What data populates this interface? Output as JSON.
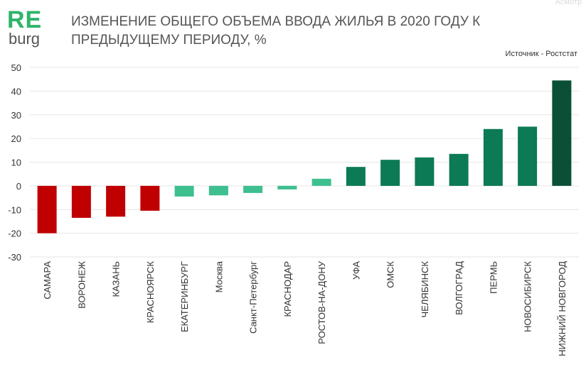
{
  "logo": {
    "re": "RE",
    "burg": "burg"
  },
  "header": {
    "title": "ИЗМЕНЕНИЕ ОБЩЕГО ОБЪЕМА ВВОДА ЖИЛЬЯ В 2020 ГОДУ К ПРЕДЫДУЩЕМУ ПЕРИОДУ, %",
    "source": "Источник - Ростстат",
    "watermark": "Асмотр"
  },
  "colors": {
    "negative": "#c00000",
    "small": "#3dbf8f",
    "positive": "#0b7a55",
    "max": "#0a5036",
    "grid": "#e6e6e6",
    "axis_text": "#333333"
  },
  "chart_data": {
    "type": "bar",
    "title": "ИЗМЕНЕНИЕ ОБЩЕГО ОБЪЕМА ВВОДА ЖИЛЬЯ В 2020 ГОДУ К ПРЕДЫДУЩЕМУ ПЕРИОДУ, %",
    "categories": [
      "САМАРА",
      "ВОРОНЕЖ",
      "КАЗАНЬ",
      "КРАСНОЯРСК",
      "ЕКАТЕРИНБУРГ",
      "Москва",
      "Санкт-Петербург",
      "КРАСНОДАР",
      "РОСТОВ-НА-ДОНУ",
      "УФА",
      "ОМСК",
      "ЧЕЛЯБИНСК",
      "ВОЛГОГРАД",
      "ПЕРМЬ",
      "НОВОСИБИРСК",
      "НИЖНИЙ НОВГОРОД"
    ],
    "values": [
      -20,
      -13.5,
      -13,
      -10.5,
      -4.5,
      -4,
      -3,
      -1.5,
      3,
      8,
      11,
      12,
      13.5,
      24,
      25,
      44.5
    ],
    "color_groups": [
      "negative",
      "negative",
      "negative",
      "negative",
      "small",
      "small",
      "small",
      "small",
      "small",
      "positive",
      "positive",
      "positive",
      "positive",
      "positive",
      "positive",
      "max"
    ],
    "ylim": [
      -30,
      50
    ],
    "yticks": [
      50,
      40,
      30,
      20,
      10,
      0,
      -10,
      -20,
      -30
    ],
    "ytick_labels": [
      "50",
      "40",
      "30",
      "20",
      "10",
      "0",
      "-10",
      "-20",
      "-30"
    ],
    "xlabel": "",
    "ylabel": "",
    "grid": true,
    "legend": "none"
  }
}
